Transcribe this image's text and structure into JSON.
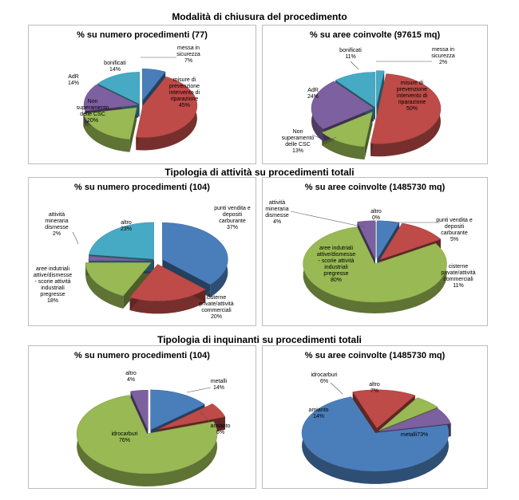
{
  "chart_data": [
    {
      "type": "pie",
      "section": "Modalità di chiusura del procedimento",
      "title": "% su numero procedimenti (77)",
      "slices": [
        {
          "label": "messa in sicurezza",
          "value": 7
        },
        {
          "label": "misure di prevenzione intervento di riparazione",
          "value": 45
        },
        {
          "label": "Non superamento delle CSC",
          "value": 20
        },
        {
          "label": "AdR",
          "value": 14
        },
        {
          "label": "bonificati",
          "value": 14
        }
      ]
    },
    {
      "type": "pie",
      "section": "Modalità di chiusura del procedimento",
      "title": "% su aree coinvolte (97615 mq)",
      "slices": [
        {
          "label": "messa in sicurezza",
          "value": 2
        },
        {
          "label": "misure di prevenzione intervento di riparazione",
          "value": 50
        },
        {
          "label": "Non superamento delle CSC",
          "value": 13
        },
        {
          "label": "AdR",
          "value": 24
        },
        {
          "label": "bonificati",
          "value": 11
        }
      ]
    },
    {
      "type": "pie",
      "section": "Tipologia di attività su procedimenti totali",
      "title": "% su numero procedimenti (104)",
      "slices": [
        {
          "label": "punti vendita e depositi carburante",
          "value": 37
        },
        {
          "label": "cisterne private/attività commerciali",
          "value": 20
        },
        {
          "label": "aree indutriali attive/dismesse - scorie attività industriali pregresse",
          "value": 18
        },
        {
          "label": "attività mineraria dismesse",
          "value": 2
        },
        {
          "label": "altro",
          "value": 23
        }
      ]
    },
    {
      "type": "pie",
      "section": "Tipologia di attività su procedimenti totali",
      "title": "% su aree coinvolte (1485730 mq)",
      "slices": [
        {
          "label": "punti vendita e depositi carburante",
          "value": 5
        },
        {
          "label": "cisterne private/attività commerciali",
          "value": 11
        },
        {
          "label": "aree indutriali attive/dismesse - scorie attività industriali pregresse",
          "value": 80
        },
        {
          "label": "attività mineraria dismesse",
          "value": 4
        },
        {
          "label": "altro",
          "value": 0
        }
      ]
    },
    {
      "type": "pie",
      "section": "Tipologia di inquinanti su procedimenti totali",
      "title": "% su numero procedimenti (104)",
      "slices": [
        {
          "label": "metalli",
          "value": 14
        },
        {
          "label": "amianto",
          "value": 6
        },
        {
          "label": "idrocarburi",
          "value": 76
        },
        {
          "label": "altro",
          "value": 4
        }
      ]
    },
    {
      "type": "pie",
      "section": "Tipologia di inquinanti su procedimenti totali",
      "title": "% su aree coinvolte (1485730 mq)",
      "slices": [
        {
          "label": "metalli",
          "value": 73
        },
        {
          "label": "amianto",
          "value": 14
        },
        {
          "label": "idrocarburi",
          "value": 6
        },
        {
          "label": "altro",
          "value": 7
        }
      ]
    }
  ],
  "sections": [
    "Modalità di chiusura del procedimento",
    "Tipologia di attività su procedimenti totali",
    "Tipologia di inquinanti su procedimenti totali"
  ],
  "colors": {
    "blue": "#4a7ebb",
    "red": "#be4b48",
    "green": "#98b954",
    "purple": "#7d60a0",
    "cyan": "#46aac5",
    "border": "#bdbdbd"
  }
}
